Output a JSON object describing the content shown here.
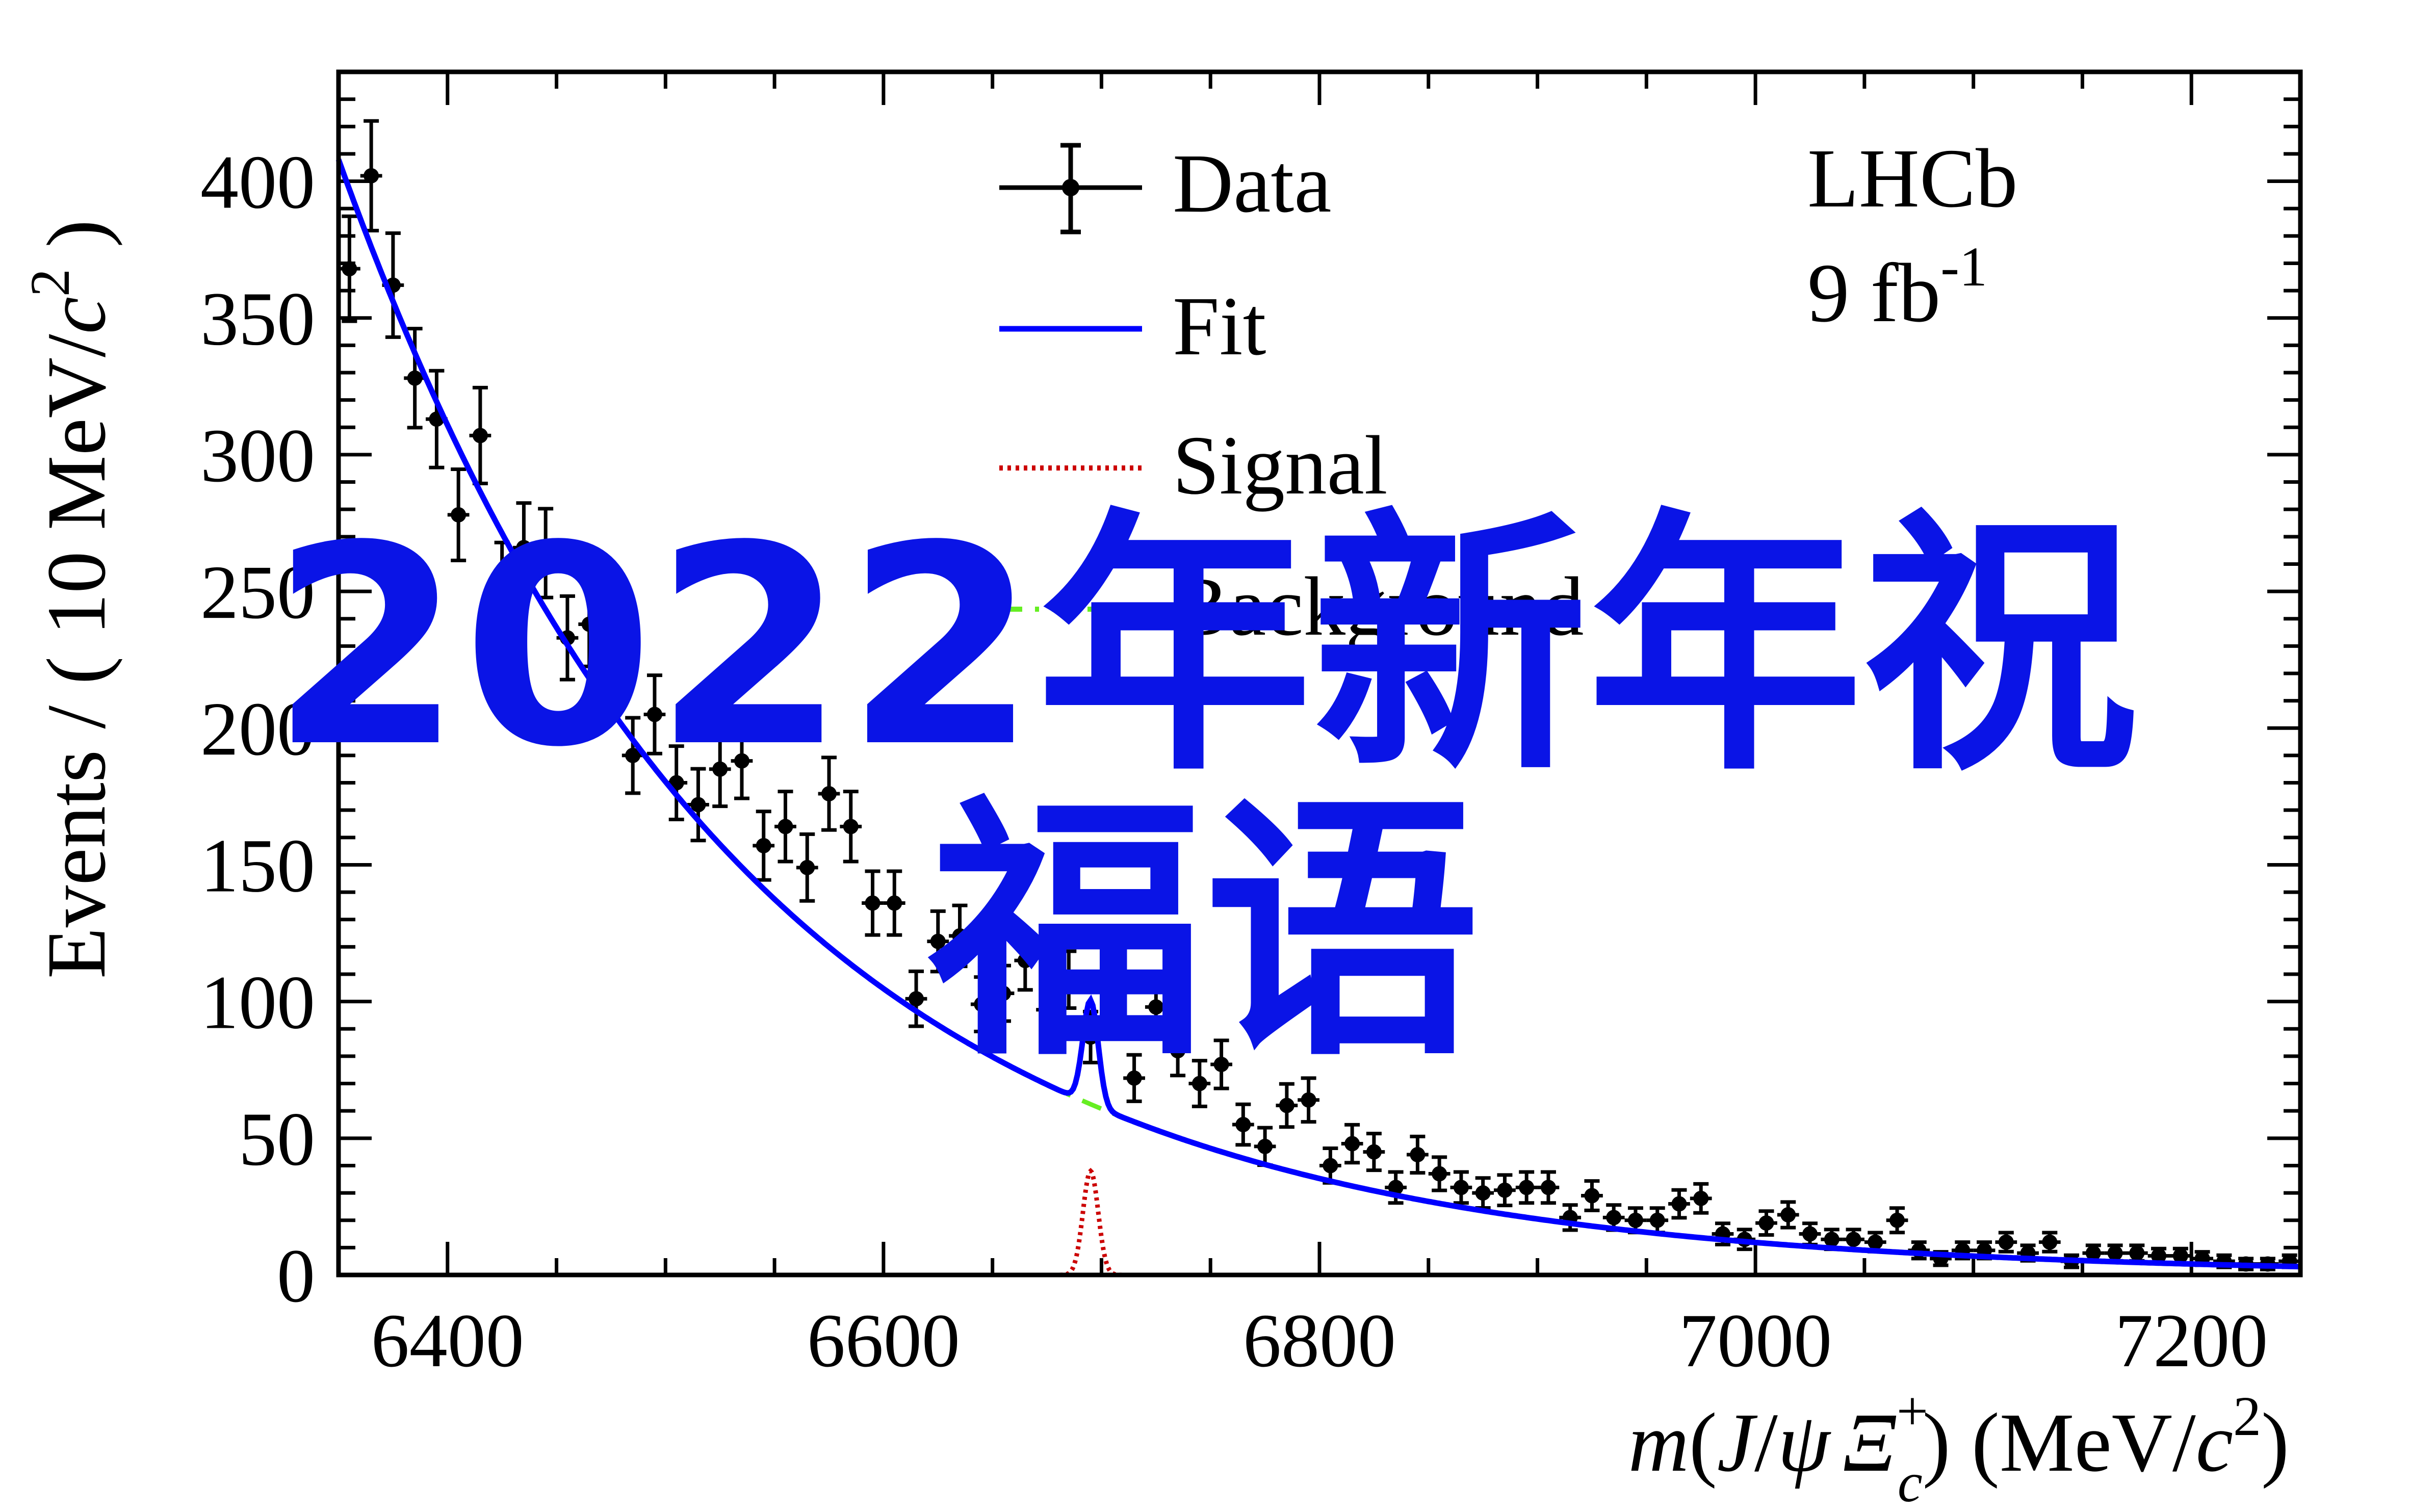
{
  "chart_data": {
    "type": "scatter",
    "experiment": "LHCb",
    "luminosity": "9 fb",
    "luminosity_exp": "-1",
    "ylabel_parts": {
      "pre": "Events / ( 10 MeV/",
      "c": "c",
      "exp": "2",
      "post": " )"
    },
    "xlabel_parts": {
      "m": "m",
      "open": "(",
      "J": "J",
      "slash": "/",
      "psi": "ψ",
      "Xi": "Ξ",
      "sub": "c",
      "sup": "+",
      "close": ")",
      "units": " (MeV/",
      "c": "c",
      "exp": "2",
      "units_close": ")"
    },
    "xlim": [
      6350,
      7250
    ],
    "ylim": [
      0,
      440
    ],
    "x_ticks": [
      6400,
      6600,
      6800,
      7000,
      7200
    ],
    "y_ticks": [
      0,
      50,
      100,
      150,
      200,
      250,
      300,
      350,
      400
    ],
    "legend": [
      {
        "name": "Data",
        "style": "points",
        "color": "#000000"
      },
      {
        "name": "Fit",
        "style": "solid",
        "color": "#0000ff"
      },
      {
        "name": "Signal",
        "style": "dotted",
        "color": "#cc0000"
      },
      {
        "name": "Background",
        "style": "dashed",
        "color": "#66ee22"
      }
    ],
    "data_points": [
      [
        6355,
        368
      ],
      [
        6365,
        402
      ],
      [
        6375,
        362
      ],
      [
        6385,
        328
      ],
      [
        6395,
        313
      ],
      [
        6405,
        278
      ],
      [
        6415,
        307
      ],
      [
        6425,
        252
      ],
      [
        6435,
        266
      ],
      [
        6445,
        264
      ],
      [
        6455,
        233
      ],
      [
        6465,
        238
      ],
      [
        6475,
        218
      ],
      [
        6485,
        190
      ],
      [
        6495,
        205
      ],
      [
        6505,
        180
      ],
      [
        6515,
        172
      ],
      [
        6525,
        185
      ],
      [
        6535,
        188
      ],
      [
        6545,
        157
      ],
      [
        6555,
        164
      ],
      [
        6565,
        149
      ],
      [
        6575,
        176
      ],
      [
        6585,
        164
      ],
      [
        6595,
        136
      ],
      [
        6605,
        136
      ],
      [
        6615,
        101
      ],
      [
        6625,
        122
      ],
      [
        6635,
        124
      ],
      [
        6645,
        99
      ],
      [
        6655,
        103
      ],
      [
        6665,
        115
      ],
      [
        6675,
        97
      ],
      [
        6685,
        108
      ],
      [
        6695,
        87
      ],
      [
        6705,
        106
      ],
      [
        6715,
        72
      ],
      [
        6725,
        98
      ],
      [
        6735,
        82
      ],
      [
        6745,
        70
      ],
      [
        6755,
        77
      ],
      [
        6765,
        55
      ],
      [
        6775,
        47
      ],
      [
        6785,
        62
      ],
      [
        6795,
        64
      ],
      [
        6805,
        40
      ],
      [
        6815,
        48
      ],
      [
        6825,
        45
      ],
      [
        6835,
        32
      ],
      [
        6845,
        44
      ],
      [
        6855,
        37
      ],
      [
        6865,
        32
      ],
      [
        6875,
        30
      ],
      [
        6885,
        31
      ],
      [
        6895,
        32
      ],
      [
        6905,
        32
      ],
      [
        6915,
        21
      ],
      [
        6925,
        29
      ],
      [
        6935,
        21
      ],
      [
        6945,
        20
      ],
      [
        6955,
        20
      ],
      [
        6965,
        26
      ],
      [
        6975,
        28
      ],
      [
        6985,
        15
      ],
      [
        6995,
        13
      ],
      [
        7005,
        19
      ],
      [
        7015,
        22
      ],
      [
        7025,
        15
      ],
      [
        7035,
        13
      ],
      [
        7045,
        13
      ],
      [
        7055,
        12
      ],
      [
        7065,
        20
      ],
      [
        7075,
        9
      ],
      [
        7085,
        6
      ],
      [
        7095,
        9
      ],
      [
        7105,
        9
      ],
      [
        7115,
        12
      ],
      [
        7125,
        8
      ],
      [
        7135,
        12
      ],
      [
        7145,
        5
      ],
      [
        7155,
        8
      ],
      [
        7165,
        8
      ],
      [
        7175,
        8
      ],
      [
        7185,
        7
      ],
      [
        7195,
        7
      ],
      [
        7205,
        6
      ],
      [
        7215,
        5
      ],
      [
        7225,
        4
      ],
      [
        7235,
        4
      ],
      [
        7245,
        5
      ]
    ],
    "fit_model": {
      "background_amp": 397,
      "background_slope": 0.00544,
      "x0": 6355,
      "signal_amp": 38,
      "signal_mean": 6695,
      "signal_width": 3.5
    },
    "overlay_text": [
      "2022年新年祝",
      "福语"
    ]
  }
}
